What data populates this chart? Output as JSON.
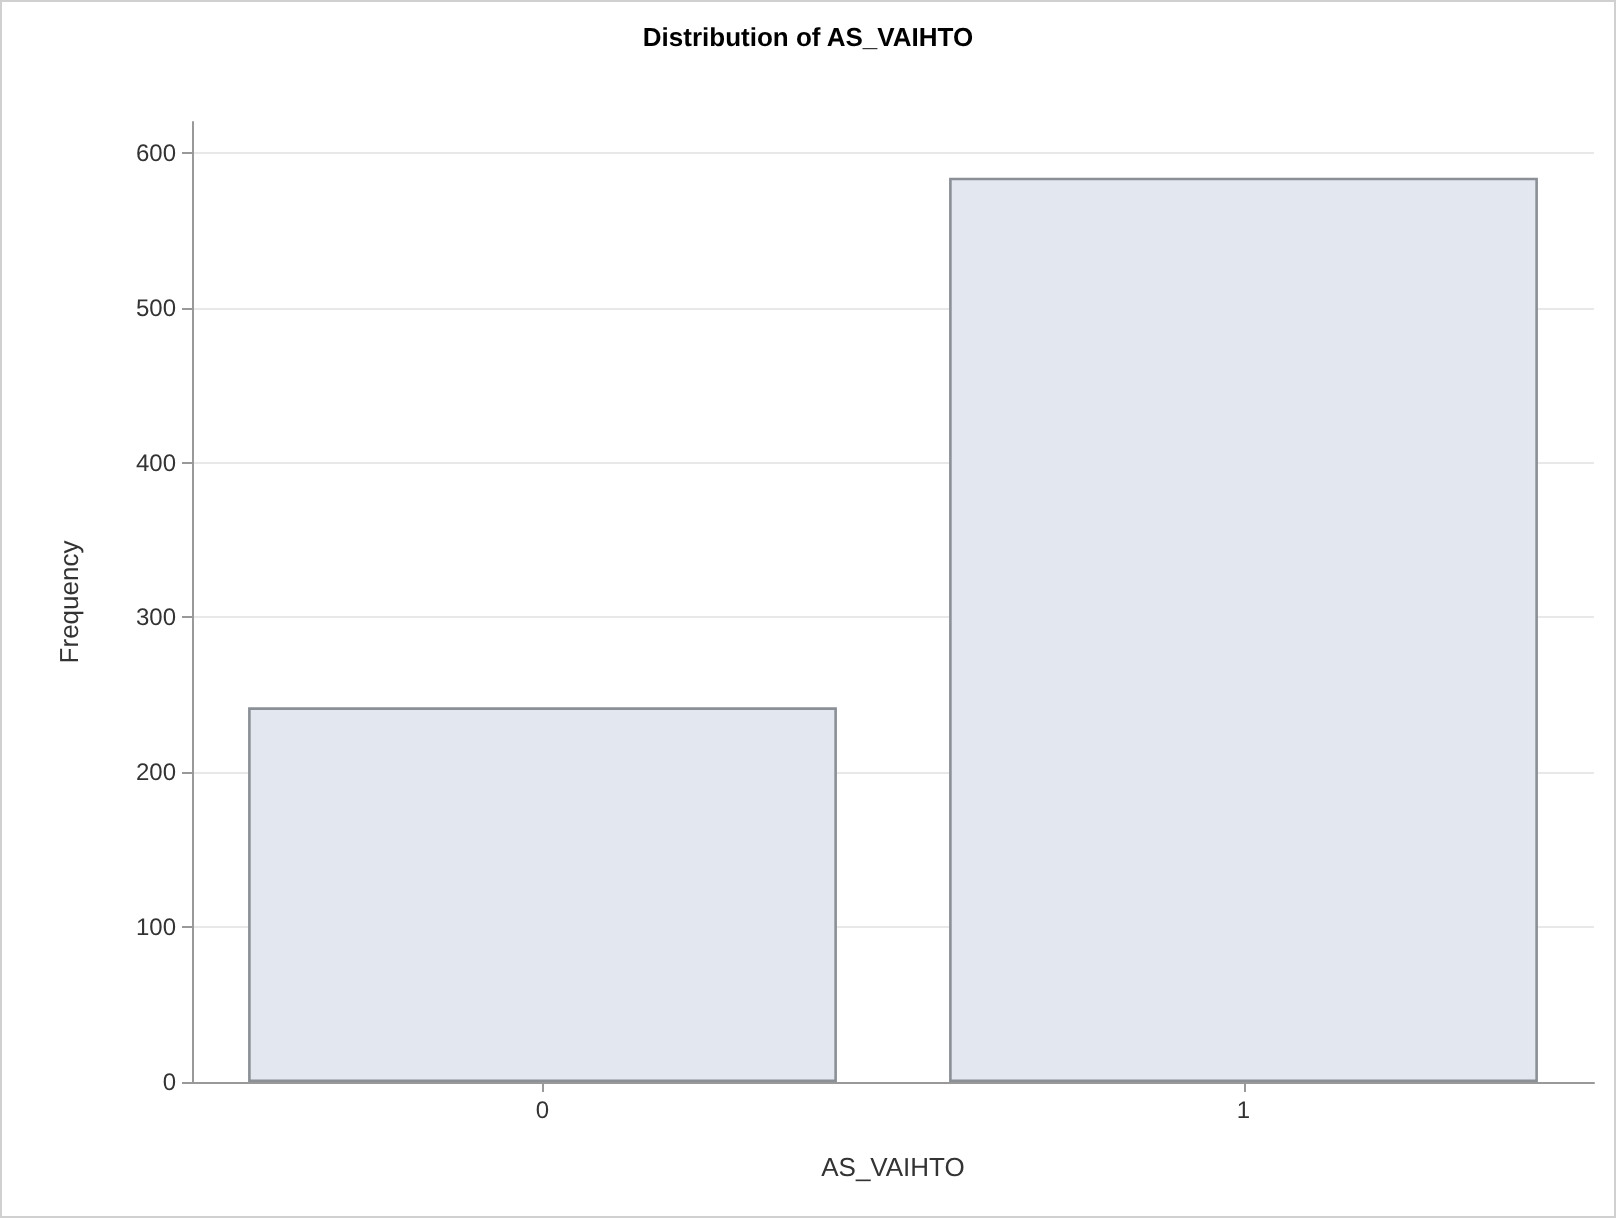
{
  "chart_data": {
    "type": "bar",
    "title": "Distribution of AS_VAIHTO",
    "xlabel": "AS_VAIHTO",
    "ylabel": "Frequency",
    "categories": [
      "0",
      "1"
    ],
    "values": [
      242,
      584
    ],
    "color": "#e3e7f0",
    "ylim": [
      0,
      620
    ],
    "yticks": [
      0,
      100,
      200,
      300,
      400,
      500,
      600
    ],
    "grid": "y"
  }
}
